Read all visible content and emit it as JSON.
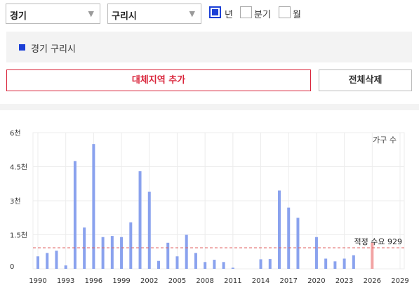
{
  "filters": {
    "province": "경기",
    "city": "구리시",
    "periods": [
      {
        "label": "년",
        "checked": true
      },
      {
        "label": "분기",
        "checked": false
      },
      {
        "label": "월",
        "checked": false
      }
    ]
  },
  "selected_region": {
    "label": "경기 구리시",
    "color": "#1b3fd6"
  },
  "buttons": {
    "add_region": "대체지역 추가",
    "clear_all": "전체삭제"
  },
  "colors": {
    "bar": "#8aa2ee",
    "forecast_bar": "#f2a3a3",
    "demand_line": "#e06060",
    "accent": "#1b3fd6",
    "danger": "#d9243a"
  },
  "chart_data": {
    "type": "bar",
    "series": [
      {
        "name": "가구 수",
        "x": [
          1990,
          1991,
          1992,
          1993,
          1994,
          1995,
          1996,
          1997,
          1998,
          1999,
          2000,
          2001,
          2002,
          2003,
          2004,
          2005,
          2006,
          2007,
          2008,
          2009,
          2010,
          2011,
          2012,
          2013,
          2014,
          2015,
          2016,
          2017,
          2018,
          2019,
          2020,
          2021,
          2022,
          2023,
          2024,
          2025,
          2026
        ],
        "values": [
          550,
          700,
          800,
          150,
          4750,
          1820,
          5500,
          1400,
          1450,
          1400,
          2050,
          4300,
          3400,
          350,
          1150,
          550,
          1500,
          700,
          300,
          400,
          300,
          50,
          0,
          0,
          420,
          430,
          3450,
          2700,
          2250,
          0,
          1400,
          450,
          330,
          450,
          600,
          0,
          1150
        ]
      }
    ],
    "forecast_years": [
      2026
    ],
    "x_ticks": [
      "1990",
      "1993",
      "1996",
      "1999",
      "2002",
      "2005",
      "2008",
      "2011",
      "2014",
      "2017",
      "2020",
      "2023",
      "2026",
      "2029"
    ],
    "y_ticks": [
      "0",
      "1.5천",
      "3천",
      "4.5천",
      "6천"
    ],
    "ylim": [
      0,
      6000
    ],
    "xlim": [
      1990,
      2029
    ],
    "demand_value": 929,
    "demand_label": "적정 수요 929",
    "grid": true
  }
}
